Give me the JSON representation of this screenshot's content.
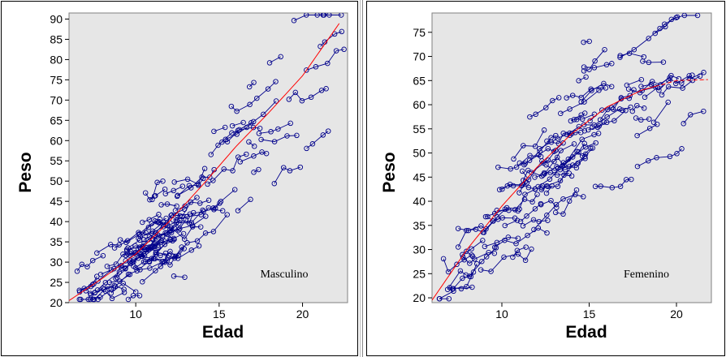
{
  "colors": {
    "panel_bg": "#e6e6e6",
    "points": "#00008b",
    "fit": "#ff0000"
  },
  "chart_data": [
    {
      "type": "scatter",
      "subtype": "spaghetti-plot",
      "xlabel": "Edad",
      "ylabel": "Peso",
      "annotation": "Masculino",
      "xlim": [
        6,
        22.7
      ],
      "ylim": [
        20,
        91.5
      ],
      "xticks": [
        10,
        15,
        20
      ],
      "yticks": [
        20,
        25,
        30,
        35,
        40,
        45,
        50,
        55,
        60,
        65,
        70,
        75,
        80,
        85,
        90
      ],
      "grid": false,
      "fit_curve": {
        "x": [
          6,
          8,
          10,
          12,
          14,
          16,
          18,
          20,
          22.3
        ],
        "y": [
          20.5,
          26,
          32,
          40,
          49,
          58.5,
          67,
          76,
          89.5
        ]
      }
    },
    {
      "type": "scatter",
      "subtype": "spaghetti-plot",
      "xlabel": "Edad",
      "ylabel": "Peso",
      "annotation": "Femenino",
      "xlim": [
        6,
        22
      ],
      "ylim": [
        19,
        79
      ],
      "xticks": [
        10,
        15,
        20
      ],
      "yticks": [
        20,
        25,
        30,
        35,
        40,
        45,
        50,
        55,
        60,
        65,
        70,
        75
      ],
      "grid": false,
      "fit_curve": {
        "x": [
          6,
          8,
          10,
          12,
          14,
          16,
          18,
          20,
          21.8
        ],
        "y": [
          19.5,
          30,
          39,
          47,
          54,
          59.5,
          63,
          65,
          65.2
        ]
      }
    }
  ]
}
